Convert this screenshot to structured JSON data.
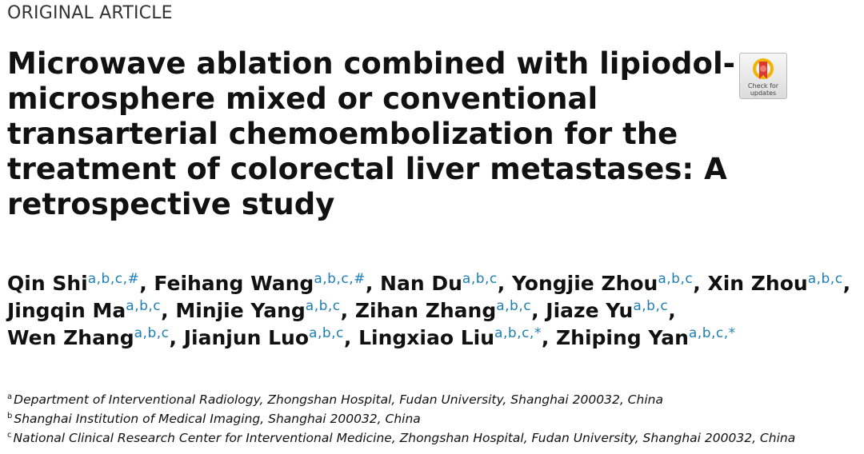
{
  "section_label": "ORIGINAL ARTICLE",
  "title_lines": [
    "Microwave ablation combined with lipiodol-",
    "microsphere mixed or conventional",
    "transarterial chemoembolization for the",
    "treatment of colorectal liver metastases: A",
    "retrospective study"
  ],
  "badge": {
    "icon": "crossmark-icon",
    "text_line1": "Check for",
    "text_line2": "updates"
  },
  "author_lines": [
    [
      {
        "name": "Qin Shi",
        "sup": "a,b,c,#",
        "sep": ", "
      },
      {
        "name": "Feihang Wang",
        "sup": "a,b,c,#",
        "sep": ", "
      },
      {
        "name": "Nan Du",
        "sup": "a,b,c",
        "sep": ", "
      },
      {
        "name": "Yongjie Zhou",
        "sup": "a,b,c",
        "sep": ", "
      },
      {
        "name": "Xin Zhou",
        "sup": "a,b,c",
        "sep": ","
      }
    ],
    [
      {
        "name": "Jingqin Ma",
        "sup": "a,b,c",
        "sep": ", "
      },
      {
        "name": "Minjie Yang",
        "sup": "a,b,c",
        "sep": ", "
      },
      {
        "name": "Zihan Zhang",
        "sup": "a,b,c",
        "sep": ", "
      },
      {
        "name": "Jiaze Yu",
        "sup": "a,b,c",
        "sep": ","
      }
    ],
    [
      {
        "name": "Wen Zhang",
        "sup": "a,b,c",
        "sep": ", "
      },
      {
        "name": "Jianjun Luo",
        "sup": "a,b,c",
        "sep": ", "
      },
      {
        "name": "Lingxiao Liu",
        "sup": "a,b,c,*",
        "sep": ", "
      },
      {
        "name": "Zhiping Yan",
        "sup": "a,b,c,*",
        "sep": ""
      }
    ]
  ],
  "affiliations": [
    {
      "mark": "a",
      "text": "Department of Interventional Radiology, Zhongshan Hospital, Fudan University, Shanghai 200032, China"
    },
    {
      "mark": "b",
      "text": "Shanghai Institution of Medical Imaging, Shanghai 200032, China"
    },
    {
      "mark": "c",
      "text": "National Clinical Research Center for Interventional Medicine, Zhongshan Hospital, Fudan University, Shanghai 200032, China"
    }
  ],
  "colors": {
    "superscript": "#1d7fb3",
    "text": "#111111",
    "badge_red": "#e0372c",
    "badge_gold": "#f2b400"
  }
}
